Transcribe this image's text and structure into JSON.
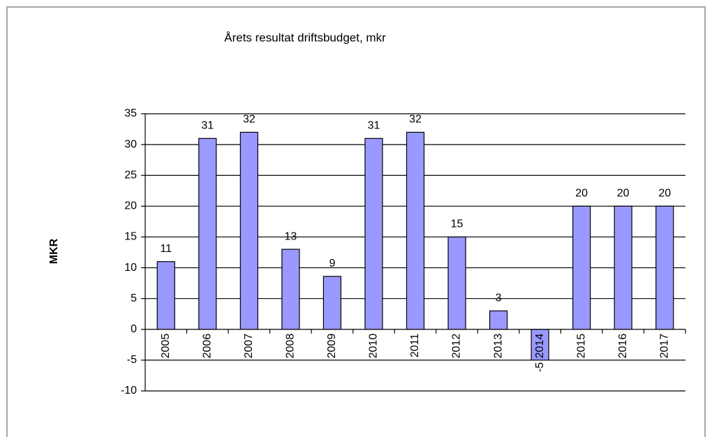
{
  "chart_data": {
    "type": "bar",
    "title": "Årets resultat driftsbudget, mkr",
    "y_label": "MKR",
    "categories": [
      "2005",
      "2006",
      "2007",
      "2008",
      "2009",
      "2010",
      "2011",
      "2012",
      "2013",
      "2014",
      "2015",
      "2016",
      "2017"
    ],
    "values": [
      11,
      31,
      32,
      13,
      8.6,
      31,
      32,
      15,
      3,
      -5,
      20,
      20,
      20
    ],
    "value_labels": [
      "11",
      "31",
      "32",
      "13",
      "9",
      "31",
      "32",
      "15",
      "3",
      "-5",
      "20",
      "20",
      "20"
    ],
    "color": "#9999ff",
    "ylim": [
      -10,
      35
    ],
    "yticks": [
      -10,
      -5,
      0,
      5,
      10,
      15,
      20,
      25,
      30,
      35
    ],
    "grid": true
  }
}
